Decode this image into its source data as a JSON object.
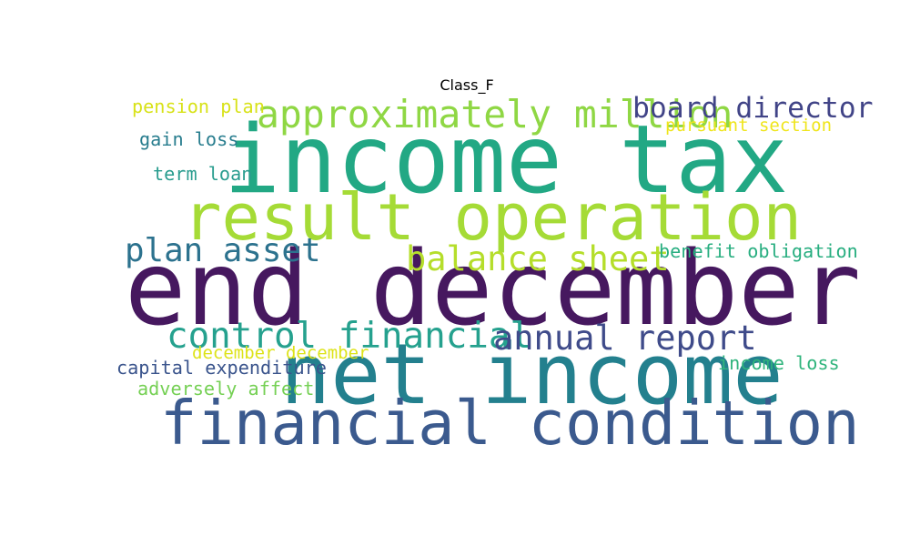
{
  "chart_data": {
    "type": "wordcloud",
    "title": "Class_F",
    "words": [
      {
        "text": "end december",
        "weight": 100,
        "color": "#46185f"
      },
      {
        "text": "income tax",
        "weight": 92,
        "color": "#22a884"
      },
      {
        "text": "net income",
        "weight": 82,
        "color": "#23808e"
      },
      {
        "text": "result operation",
        "weight": 63,
        "color": "#a5db36"
      },
      {
        "text": "financial condition",
        "weight": 60,
        "color": "#3b5a8e"
      },
      {
        "text": "approximately million",
        "weight": 37,
        "color": "#8fd744"
      },
      {
        "text": "control financial",
        "weight": 35,
        "color": "#25a18e"
      },
      {
        "text": "annual report",
        "weight": 33,
        "color": "#3f4b8a"
      },
      {
        "text": "balance sheet",
        "weight": 33,
        "color": "#b5de2b"
      },
      {
        "text": "plan asset",
        "weight": 32,
        "color": "#2c728e"
      },
      {
        "text": "board director",
        "weight": 28,
        "color": "#414487"
      },
      {
        "text": "benefit obligation",
        "weight": 18,
        "color": "#28ae80"
      },
      {
        "text": "capital expenditure",
        "weight": 18,
        "color": "#3a548c"
      },
      {
        "text": "income loss",
        "weight": 18,
        "color": "#2fb47c"
      },
      {
        "text": "pension plan",
        "weight": 18,
        "color": "#d8e219"
      },
      {
        "text": "gain loss",
        "weight": 18,
        "color": "#287d8e"
      },
      {
        "text": "term loan",
        "weight": 18,
        "color": "#2a9d8f"
      },
      {
        "text": "adversely affect",
        "weight": 18,
        "color": "#75d054"
      },
      {
        "text": "december december",
        "weight": 17,
        "color": "#dde318"
      },
      {
        "text": "pursuant section",
        "weight": 17,
        "color": "#efe51c"
      }
    ]
  }
}
